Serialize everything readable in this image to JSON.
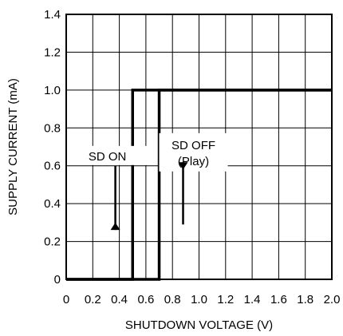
{
  "chart_data": {
    "type": "line",
    "title": "",
    "xlabel": "SHUTDOWN VOLTAGE (V)",
    "ylabel": "SUPPLY CURRENT (mA)",
    "xlim": [
      0,
      2.0
    ],
    "ylim": [
      0,
      1.4
    ],
    "grid": true,
    "x_ticks": [
      0,
      0.2,
      0.4,
      0.6,
      0.8,
      1.0,
      1.2,
      1.4,
      1.6,
      1.8,
      2.0
    ],
    "x_tick_labels": [
      "0",
      "0.2",
      "0.4",
      "0.6",
      "0.8",
      "1.0",
      "1.2",
      "1.4",
      "1.6",
      "1.8",
      "2.0"
    ],
    "y_ticks": [
      0,
      0.2,
      0.4,
      0.6,
      0.8,
      1.0,
      1.2,
      1.4
    ],
    "y_tick_labels": [
      "0",
      "0.2",
      "0.4",
      "0.6",
      "0.8",
      "1.0",
      "1.2",
      "1.4"
    ],
    "series": [
      {
        "direction": "falling",
        "x": [
          2.0,
          0.5,
          0.5,
          0
        ],
        "y": [
          1.0,
          1.0,
          0,
          0
        ]
      },
      {
        "direction": "rising",
        "x": [
          0,
          0.7,
          0.7,
          2.0
        ],
        "y": [
          0,
          0,
          1.0,
          1.0
        ]
      }
    ],
    "annotations": [
      {
        "text": "SD ON",
        "arrow": "down",
        "x": 0.37,
        "y": 0.57
      },
      {
        "text": "SD OFF",
        "text2": "(Play)",
        "arrow": "up",
        "x": 0.88,
        "y": 0.57
      }
    ]
  }
}
